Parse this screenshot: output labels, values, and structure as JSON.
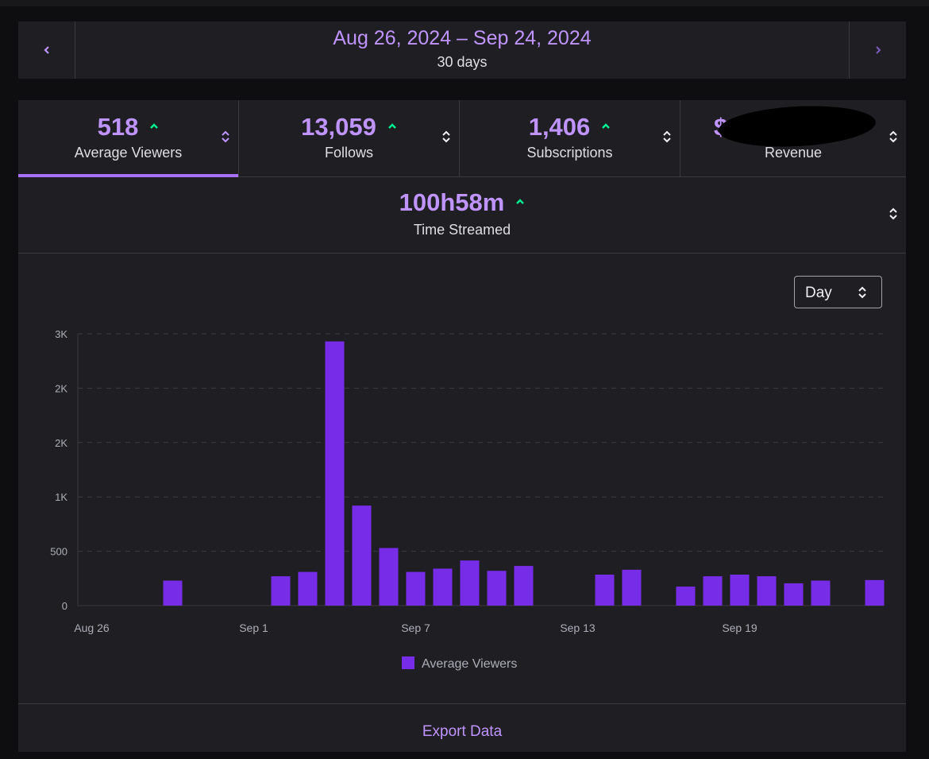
{
  "date_range": {
    "title": "Aug 26, 2024 – Sep 24, 2024",
    "subtitle": "30 days",
    "prev_icon": "chevron-left-icon",
    "next_icon": "chevron-right-icon"
  },
  "tabs": [
    {
      "value": "518",
      "label": "Average Viewers",
      "active": true
    },
    {
      "value": "13,059",
      "label": "Follows"
    },
    {
      "value": "1,406",
      "label": "Subscriptions"
    },
    {
      "value": "$",
      "label": "Revenue",
      "redacted": true
    }
  ],
  "time_streamed": {
    "value": "100h58m",
    "label": "Time Streamed"
  },
  "interval_select": {
    "value": "Day"
  },
  "export_label": "Export Data",
  "colors": {
    "accent": "#bf94ff",
    "bar": "#772ce8",
    "trend_up": "#00f593",
    "panel": "#1f1f23"
  },
  "chart_data": {
    "type": "bar",
    "categories": [
      "Aug 26",
      "Aug 27",
      "Aug 28",
      "Aug 29",
      "Aug 30",
      "Aug 31",
      "Sep 1",
      "Sep 2",
      "Sep 3",
      "Sep 4",
      "Sep 5",
      "Sep 6",
      "Sep 7",
      "Sep 8",
      "Sep 9",
      "Sep 10",
      "Sep 11",
      "Sep 12",
      "Sep 13",
      "Sep 14",
      "Sep 15",
      "Sep 16",
      "Sep 17",
      "Sep 18",
      "Sep 19",
      "Sep 20",
      "Sep 21",
      "Sep 22",
      "Sep 23",
      "Sep 24"
    ],
    "series": [
      {
        "name": "Average Viewers",
        "values": [
          0,
          0,
          0,
          230,
          0,
          0,
          0,
          270,
          310,
          2430,
          920,
          530,
          310,
          340,
          415,
          320,
          365,
          0,
          0,
          285,
          330,
          0,
          175,
          270,
          285,
          270,
          205,
          230,
          0,
          235
        ]
      }
    ],
    "y_ticks": [
      "0",
      "500",
      "1K",
      "2K",
      "2K",
      "3K"
    ],
    "ylim": [
      0,
      2500
    ],
    "x_tick_labels": [
      {
        "index": 0,
        "label": "Aug 26"
      },
      {
        "index": 6,
        "label": "Sep 1"
      },
      {
        "index": 12,
        "label": "Sep 7"
      },
      {
        "index": 18,
        "label": "Sep 13"
      },
      {
        "index": 24,
        "label": "Sep 19"
      }
    ],
    "legend": "Average Viewers",
    "legend_position": "bottom-center",
    "grid": true
  }
}
